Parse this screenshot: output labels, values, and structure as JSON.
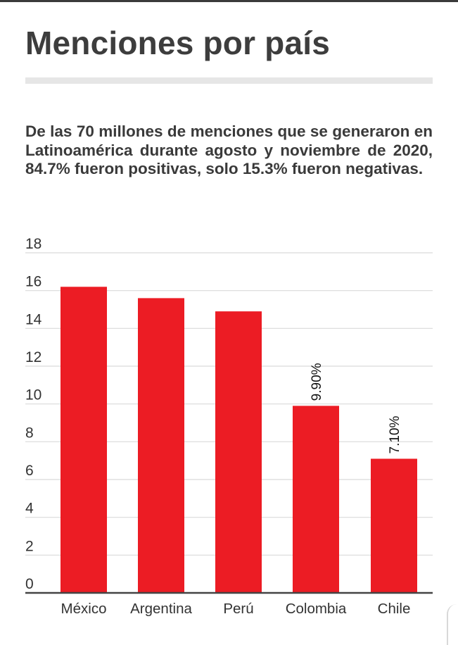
{
  "title": "Menciones por país",
  "description": "De las 70 millones de menciones que se generaron en Latinoamérica durante agosto y noviembre de 2020, 84.7% fueron positivas, solo 15.3% fueron negativas.",
  "colors": {
    "bar": "#ec1c24",
    "title": "#3d3d3d",
    "grid": "#d9d9d9",
    "axis": "#444444"
  },
  "chart_data": {
    "type": "bar",
    "categories": [
      "México",
      "Argentina",
      "Perú",
      "Colombia",
      "Chile"
    ],
    "values": [
      16.2,
      15.6,
      14.9,
      9.9,
      7.1
    ],
    "data_labels": [
      "",
      "",
      "",
      "9.90%",
      "7.10%"
    ],
    "yticks": [
      0,
      2,
      4,
      6,
      8,
      10,
      12,
      14,
      16,
      18
    ],
    "ylim": [
      0,
      18
    ],
    "grid": true,
    "title": "",
    "xlabel": "",
    "ylabel": ""
  }
}
